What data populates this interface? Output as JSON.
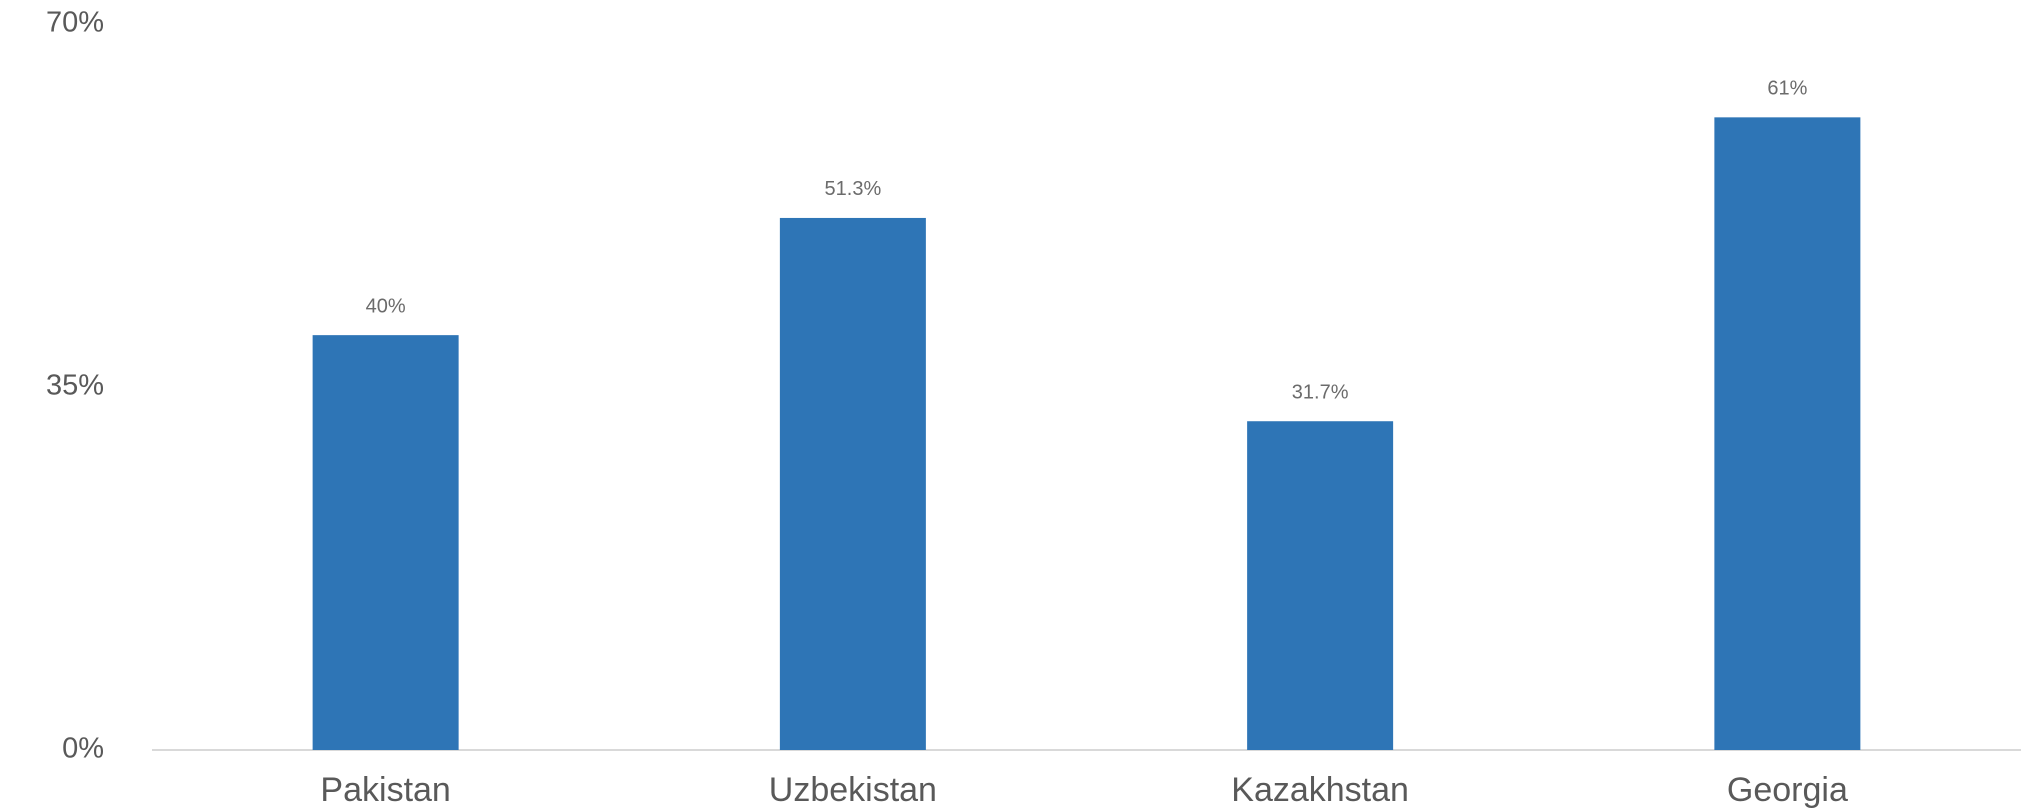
{
  "chart_data": {
    "type": "bar",
    "categories": [
      "Pakistan",
      "Uzbekistan",
      "Kazakhstan",
      "Georgia"
    ],
    "values": [
      40,
      51.3,
      31.7,
      61
    ],
    "value_labels": [
      "40%",
      "51.3%",
      "31.7%",
      "61%"
    ],
    "color": "#2e75b6",
    "ylim": [
      0,
      70
    ],
    "yticks": [
      {
        "value": 0,
        "label": "0%"
      },
      {
        "value": 35,
        "label": "35%"
      },
      {
        "value": 70,
        "label": "70%"
      }
    ],
    "grid": false
  }
}
